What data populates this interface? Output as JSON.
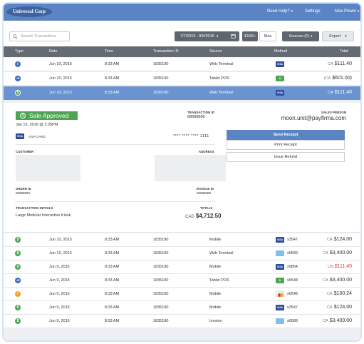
{
  "header": {
    "logo_text": "Universal Corp",
    "links": {
      "help": "Need Help?",
      "settings": "Settings",
      "user": "Max Power"
    }
  },
  "toolbar": {
    "search_placeholder": "Search Transactions",
    "date_range": "7/7/2015 - 8/5/2015",
    "min_amount": "$100+",
    "max_amount": "Max",
    "sources": "Sources (2)",
    "export": "Export"
  },
  "columns": [
    "Type",
    "Date",
    "Time",
    "Transaction ID",
    "Source",
    "Method",
    "Total"
  ],
  "rows_top": [
    {
      "type_icon": "info",
      "date": "Jun 10, 2015",
      "time": "8:33 AM",
      "tid": "1835190",
      "source": "Web Terminal",
      "method": "visa",
      "last4": "",
      "currency": "CA",
      "total": "$111.40",
      "red": false
    },
    {
      "type_icon": "arrow",
      "date": "Jun 10, 2015",
      "time": "8:33 AM",
      "tid": "1835190",
      "source": "Tablet POS",
      "method": "cash",
      "last4": "",
      "currency": "(CA",
      "total": "$601.00)",
      "red": false
    },
    {
      "type_icon": "dollar",
      "date": "Jun 10, 2015",
      "time": "8:33 AM",
      "tid": "1835190",
      "source": "Web Terminal",
      "method": "visa",
      "last4": "",
      "currency": "CA",
      "total": "$111.40",
      "red": false
    }
  ],
  "detail": {
    "status": "Sale Approved",
    "datetime": "Jan 15, 2016 @ 2:35PM",
    "card_label": "VISA CARD",
    "card_number": "**** **** **** 1111",
    "transaction_id_label": "TRANSACTION ID",
    "transaction_id": "88888888",
    "sales_person_label": "SALES PERSON",
    "sales_person": "moon.unit@payfirma.com",
    "customer_label": "CUSTOMER",
    "address_label": "ADDRESS",
    "order_id_label": "ORDER ID",
    "order_id": "88888888",
    "invoice_id_label": "INVOICE ID",
    "invoice_id": "88888888",
    "transaction_details_label": "TRANSACTION DETAILS",
    "transaction_details": "Large Modular Interactive Kiosk",
    "totals_label": "TOTALS",
    "totals_currency": "CAD",
    "totals": "$4,712.50",
    "buttons": {
      "send_receipt": "Send Receipt",
      "print_receipt": "Print Receipt",
      "issue_refund": "Issue Refund"
    }
  },
  "rows_bottom": [
    {
      "type_icon": "dollar",
      "date": "Jun 10, 2015",
      "time": "8:33 AM",
      "tid": "1835190",
      "source": "Mobile",
      "method": "visa",
      "last4": "x3547",
      "currency": "CA",
      "total": "$124.00",
      "red": false
    },
    {
      "type_icon": "dollar",
      "date": "Jun 10, 2015",
      "time": "8:33 AM",
      "tid": "1835190",
      "source": "Web Terminal",
      "method": "card",
      "last4": "x6589",
      "currency": "CA",
      "total": "$3,400.00",
      "red": false
    },
    {
      "type_icon": "dollar",
      "date": "Jun 9, 2015",
      "time": "8:33 AM",
      "tid": "1835190",
      "source": "Mobile",
      "method": "visa",
      "last4": "x9854",
      "currency": "US",
      "total": "$111.40",
      "red": true
    },
    {
      "type_icon": "arrow",
      "date": "Jun 9, 2015",
      "time": "8:33 AM",
      "tid": "1835190",
      "source": "Tablet POS",
      "method": "cash",
      "last4": "x6548",
      "currency": "CA",
      "total": "$3,400.00",
      "red": false
    },
    {
      "type_icon": "warning",
      "date": "Jun 9, 2015",
      "time": "8:33 AM",
      "tid": "1835190",
      "source": "Mobile",
      "method": "mastercard",
      "last4": "x6548",
      "currency": "CA",
      "total": "$100.24",
      "red": false
    },
    {
      "type_icon": "dollar",
      "date": "Jun 9, 2015",
      "time": "8:33 AM",
      "tid": "1835190",
      "source": "Mobile",
      "method": "visa",
      "last4": "x3547",
      "currency": "CA",
      "total": "$124.00",
      "red": false
    },
    {
      "type_icon": "dollar",
      "date": "Jun 9, 2015",
      "time": "8:33 AM",
      "tid": "1835190",
      "source": "Invoice",
      "method": "card",
      "last4": "x6589",
      "currency": "CA",
      "total": "$3,400.00",
      "red": false
    }
  ],
  "colors": {
    "header": "#5b84c4",
    "selected_row": "#6a93cf",
    "approved": "#4fa454",
    "table_header": "#646b73"
  }
}
